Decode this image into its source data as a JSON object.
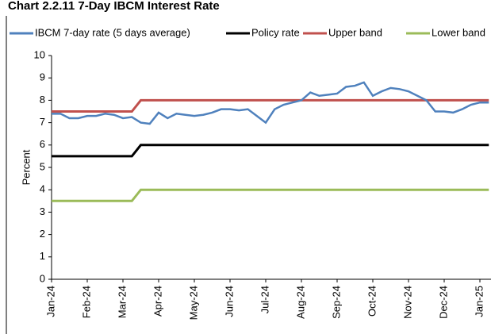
{
  "chart_data": {
    "type": "line",
    "title": "Chart 2.2.11 7-Day IBCM Interest Rate",
    "y_label": "Percent",
    "categories": [
      "Jan-24",
      null,
      null,
      null,
      "Feb-24",
      null,
      null,
      null,
      "Mar-24",
      null,
      null,
      null,
      "Apr-24",
      null,
      null,
      null,
      "May-24",
      null,
      null,
      null,
      "Jun-24",
      null,
      null,
      null,
      "Jul-24",
      null,
      null,
      null,
      "Aug-24",
      null,
      null,
      null,
      "Sep-24",
      null,
      null,
      null,
      "Oct-24",
      null,
      null,
      null,
      "Nov-24",
      null,
      null,
      null,
      "Dec-24",
      null,
      null,
      null,
      "Jan-25",
      null
    ],
    "series": [
      {
        "name": "IBCM 7-day rate (5 days average)",
        "color": "#4f81bd",
        "values": [
          7.4,
          7.4,
          7.2,
          7.2,
          7.3,
          7.3,
          7.4,
          7.35,
          7.2,
          7.25,
          7.0,
          6.95,
          7.45,
          7.2,
          7.4,
          7.35,
          7.3,
          7.35,
          7.45,
          7.6,
          7.6,
          7.55,
          7.6,
          7.3,
          7.0,
          7.6,
          7.8,
          7.9,
          8.0,
          8.35,
          8.2,
          8.25,
          8.3,
          8.6,
          8.65,
          8.8,
          8.2,
          8.4,
          8.55,
          8.5,
          8.4,
          8.2,
          8.0,
          7.5,
          7.5,
          7.45,
          7.6,
          7.8,
          7.9,
          7.9
        ]
      },
      {
        "name": "Policy rate",
        "color": "#000000",
        "values": [
          5.5,
          5.5,
          5.5,
          5.5,
          5.5,
          5.5,
          5.5,
          5.5,
          5.5,
          5.5,
          6,
          6,
          6,
          6,
          6,
          6,
          6,
          6,
          6,
          6,
          6,
          6,
          6,
          6,
          6,
          6,
          6,
          6,
          6,
          6,
          6,
          6,
          6,
          6,
          6,
          6,
          6,
          6,
          6,
          6,
          6,
          6,
          6,
          6,
          6,
          6,
          6,
          6,
          6,
          6
        ]
      },
      {
        "name": "Upper band",
        "color": "#c0504d",
        "values": [
          7.5,
          7.5,
          7.5,
          7.5,
          7.5,
          7.5,
          7.5,
          7.5,
          7.5,
          7.5,
          8,
          8,
          8,
          8,
          8,
          8,
          8,
          8,
          8,
          8,
          8,
          8,
          8,
          8,
          8,
          8,
          8,
          8,
          8,
          8,
          8,
          8,
          8,
          8,
          8,
          8,
          8,
          8,
          8,
          8,
          8,
          8,
          8,
          8,
          8,
          8,
          8,
          8,
          8,
          8
        ]
      },
      {
        "name": "Lower band",
        "color": "#9bbb59",
        "values": [
          3.5,
          3.5,
          3.5,
          3.5,
          3.5,
          3.5,
          3.5,
          3.5,
          3.5,
          3.5,
          4,
          4,
          4,
          4,
          4,
          4,
          4,
          4,
          4,
          4,
          4,
          4,
          4,
          4,
          4,
          4,
          4,
          4,
          4,
          4,
          4,
          4,
          4,
          4,
          4,
          4,
          4,
          4,
          4,
          4,
          4,
          4,
          4,
          4,
          4,
          4,
          4,
          4,
          4,
          4
        ]
      }
    ],
    "ylim": [
      0,
      10
    ],
    "yticks": [
      0,
      1,
      2,
      3,
      4,
      5,
      6,
      7,
      8,
      9,
      10
    ],
    "grid": false,
    "legend": "top"
  }
}
